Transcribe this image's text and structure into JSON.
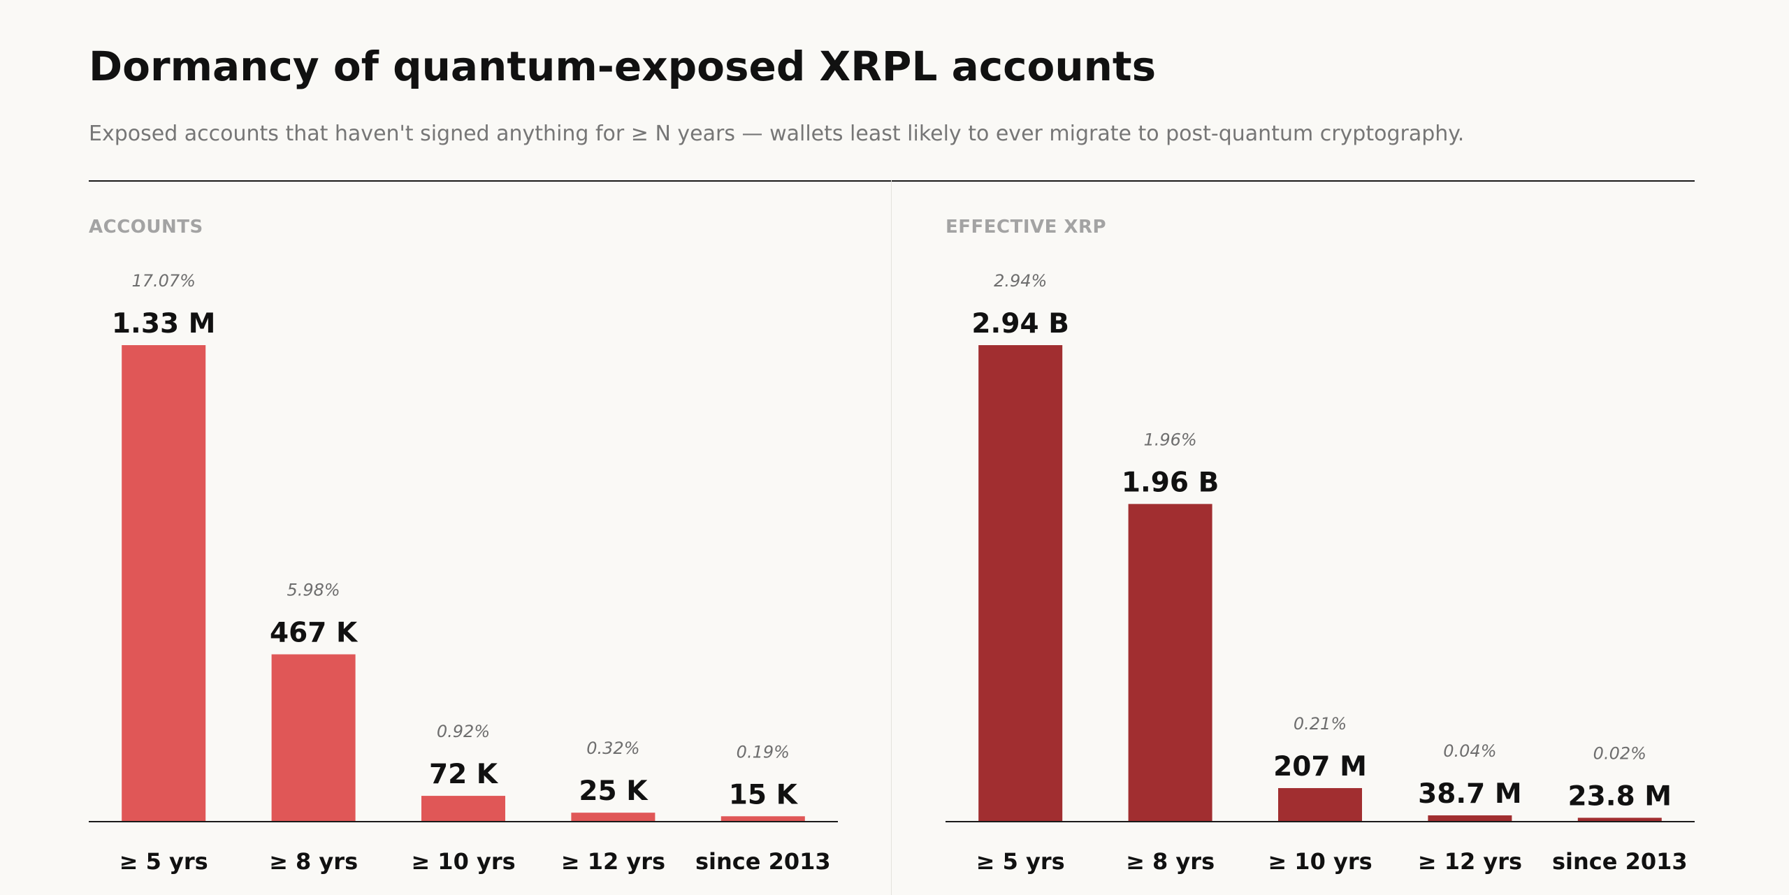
{
  "header": {
    "title": "Dormancy of quantum-exposed XRPL accounts",
    "subtitle": "Exposed accounts that haven't signed anything for ≥ N years — wallets least likely to ever migrate to post-quantum cryptography."
  },
  "chart_data": [
    {
      "type": "bar",
      "panel_label": "ACCOUNTS",
      "color": "#e05757",
      "categories": [
        "≥ 5 yrs",
        "≥ 8 yrs",
        "≥ 10 yrs",
        "≥ 12 yrs",
        "since 2013"
      ],
      "values": [
        1330000,
        467000,
        72000,
        25000,
        15000
      ],
      "value_labels": [
        "1.33 M",
        "467 K",
        "72 K",
        "25 K",
        "15 K"
      ],
      "percent_labels": [
        "17.07%",
        "5.98%",
        "0.92%",
        "0.32%",
        "0.19%"
      ],
      "ylim": [
        0,
        1330000
      ],
      "grid": false
    },
    {
      "type": "bar",
      "panel_label": "EFFECTIVE XRP",
      "color": "#a12e30",
      "categories": [
        "≥ 5 yrs",
        "≥ 8 yrs",
        "≥ 10 yrs",
        "≥ 12 yrs",
        "since 2013"
      ],
      "values": [
        2940000000,
        1960000000,
        207000000,
        38700000,
        23800000
      ],
      "value_labels": [
        "2.94 B",
        "1.96 B",
        "207 M",
        "38.7 M",
        "23.8 M"
      ],
      "percent_labels": [
        "2.94%",
        "1.96%",
        "0.21%",
        "0.04%",
        "0.02%"
      ],
      "ylim": [
        0,
        2940000000
      ],
      "grid": false
    }
  ]
}
